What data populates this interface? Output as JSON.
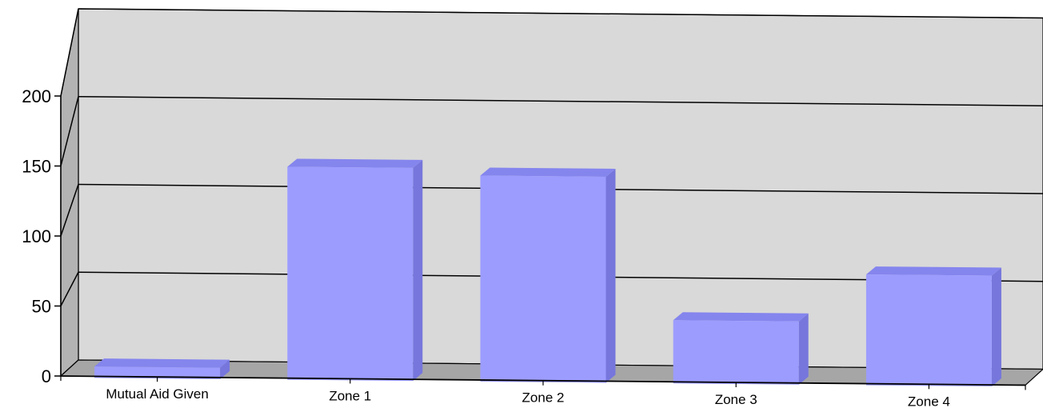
{
  "chart_data": {
    "type": "bar",
    "categories": [
      "Mutual Aid Given",
      "Zone 1",
      "Zone 2",
      "Zone 3",
      "Zone 4"
    ],
    "values": [
      7,
      151,
      146,
      44,
      78
    ],
    "ylim": [
      0,
      200
    ],
    "yticks": [
      0,
      50,
      100,
      150,
      200
    ],
    "ytick_labels": [
      "0",
      "50",
      "100",
      "150",
      "200"
    ],
    "grid": true,
    "legend": "none",
    "title": "",
    "xlabel": "",
    "ylabel": "",
    "style": "3d-perspective",
    "colors": {
      "bar_front": "#9c9cff",
      "bar_side": "#7676dc",
      "bar_top": "#8585ee",
      "wall_back": "#d9d9d9",
      "wall_side": "#b3b3b3",
      "floor": "#a6a6a6",
      "gridline": "#000000"
    }
  }
}
